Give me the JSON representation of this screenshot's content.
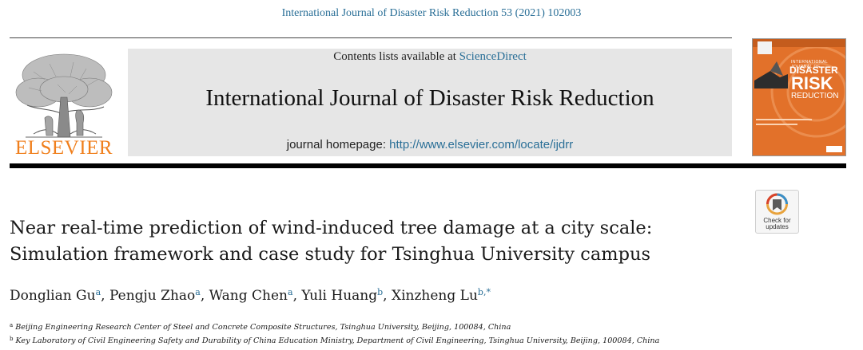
{
  "header": {
    "journal_reference": "International Journal of Disaster Risk Reduction 53 (2021) 102003",
    "publisher": "ELSEVIER",
    "contents_prefix": "Contents lists available at ",
    "contents_link": "ScienceDirect",
    "journal_title": "International Journal of Disaster Risk Reduction",
    "homepage_prefix": "journal homepage: ",
    "homepage_url": "http://www.elsevier.com/locate/ijdrr"
  },
  "cover": {
    "line1": "INTERNATIONAL JOURNAL OF",
    "line2": "DISASTER",
    "line3": "RISK",
    "line4": "REDUCTION",
    "color": "#e2712a"
  },
  "badge": {
    "line1": "Check for",
    "line2": "updates"
  },
  "article": {
    "title_line1": "Near real-time prediction of wind-induced tree damage at a city scale:",
    "title_line2": "Simulation framework and case study for Tsinghua University campus",
    "authors": [
      {
        "name": "Donglian Gu",
        "sup": "a",
        "sep": ", "
      },
      {
        "name": "Pengju Zhao",
        "sup": "a",
        "sep": ", "
      },
      {
        "name": "Wang Chen",
        "sup": "a",
        "sep": ", "
      },
      {
        "name": "Yuli Huang",
        "sup": "b",
        "sep": ", "
      },
      {
        "name": "Xinzheng Lu",
        "sup": "b,*",
        "sep": ""
      }
    ],
    "affiliations": [
      {
        "marker": "a",
        "text": "Beijing Engineering Research Center of Steel and Concrete Composite Structures, Tsinghua University, Beijing, 100084, China"
      },
      {
        "marker": "b",
        "text": "Key Laboratory of Civil Engineering Safety and Durability of China Education Ministry, Department of Civil Engineering, Tsinghua University, Beijing, 100084, China"
      }
    ]
  },
  "colors": {
    "link": "#2a6f97",
    "publisher_orange": "#f07f1c",
    "masthead_gray": "#e6e6e6"
  }
}
